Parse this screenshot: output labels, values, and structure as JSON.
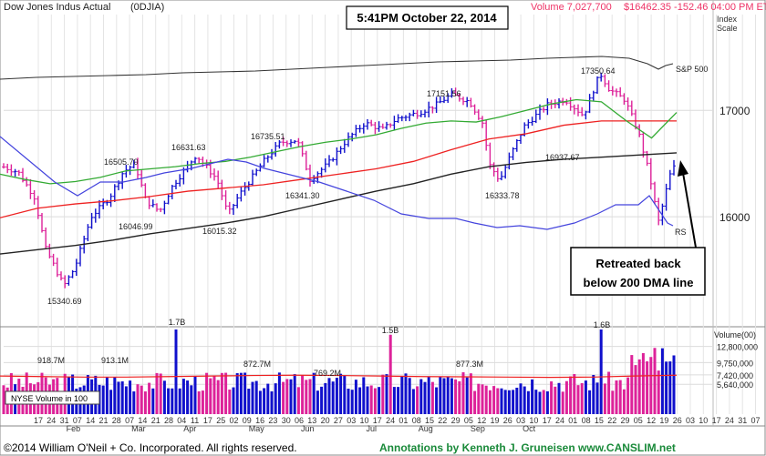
{
  "header": {
    "index_name": "Dow Jones Indus Actual",
    "ticker": "(0DJIA)",
    "volume_label": "Volume 7,027,700",
    "price_label": "$16462.35 -152.46  04:00 PM ET",
    "timestamp": "5:41PM October 22, 2014",
    "index_scale_line1": "Index",
    "index_scale_line2": "Scale"
  },
  "annotation": {
    "lines": [
      "Retreated back",
      "below 200 DMA line"
    ]
  },
  "labels": {
    "sp500": "S&P 500",
    "rs": "RS",
    "nyse_box": "NYSE Volume in 100",
    "volume_axis_title": "Volume(00)"
  },
  "footer": {
    "copyright": "©2014 William O'Neil + Co. Incorporated. All rights reserved.",
    "annotations_credit": "Annotations by Kenneth J. Gruneisen www.CANSLIM.net"
  },
  "colors": {
    "up": "#1010cc",
    "down": "#dd2299",
    "ma50": "#33aa33",
    "ma200": "#222222",
    "ma_red": "#ee2222",
    "rs": "#4444dd",
    "sp500": "#333333",
    "header_red": "#ee3366"
  },
  "chart_data": [
    {
      "type": "line",
      "name": "price",
      "yaxis": {
        "min": 15000,
        "max": 17900,
        "ticks": [
          16000,
          17000
        ],
        "tick_labels": [
          "16000",
          "17000"
        ]
      },
      "x_ticks": [
        "17",
        "24",
        "31",
        "07",
        "14",
        "21",
        "28",
        "07",
        "14",
        "21",
        "28",
        "04",
        "11",
        "17",
        "25",
        "02",
        "09",
        "16",
        "23",
        "30",
        "06",
        "13",
        "20",
        "27",
        "03",
        "10",
        "17",
        "24",
        "01",
        "08",
        "15",
        "22",
        "29",
        "05",
        "12",
        "19",
        "26",
        "03",
        "10",
        "17",
        "24",
        "01",
        "08",
        "15",
        "22",
        "29",
        "05",
        "12",
        "19",
        "26",
        "03",
        "10",
        "17",
        "24",
        "31",
        "07",
        "14",
        "21"
      ],
      "month_labels": [
        "Feb",
        "Mar",
        "Apr",
        "May",
        "Jun",
        "Jul",
        "Aug",
        "Sep",
        "Oct"
      ],
      "price_annotations": [
        {
          "label": "16505.70",
          "value": 16505.7
        },
        {
          "label": "15340.69",
          "value": 15340.69
        },
        {
          "label": "16046.99",
          "value": 16046.99
        },
        {
          "label": "16631.63",
          "value": 16631.63
        },
        {
          "label": "16015.32",
          "value": 16015.32
        },
        {
          "label": "16735.51",
          "value": 16735.51
        },
        {
          "label": "16341.30",
          "value": 16341.3
        },
        {
          "label": "17151.56",
          "value": 17151.56
        },
        {
          "label": "16333.78",
          "value": 16333.78
        },
        {
          "label": "16937.67",
          "value": 16937.67
        },
        {
          "label": "17350.64",
          "value": 17350.64
        }
      ],
      "ma50": [
        16400,
        16350,
        16310,
        16330,
        16370,
        16430,
        16450,
        16470,
        16500,
        16520,
        16560,
        16610,
        16660,
        16700,
        16730,
        16770,
        16830,
        16880,
        16900,
        16890,
        16940,
        17000,
        17060,
        17100,
        17080,
        16900,
        16740,
        16980
      ],
      "ma200": [
        15650,
        15690,
        15730,
        15780,
        15840,
        15890,
        15940,
        16000,
        16080,
        16160,
        16240,
        16310,
        16400,
        16470,
        16510,
        16540,
        16560,
        16580,
        16600
      ],
      "ma_red": [
        15990,
        16080,
        16120,
        16150,
        16190,
        16240,
        16270,
        16300,
        16350,
        16400,
        16450,
        16520,
        16630,
        16730,
        16780,
        16860,
        16900,
        16900,
        16900
      ]
    },
    {
      "type": "bar",
      "name": "volume",
      "yaxis": {
        "min": 0,
        "max": 16000000,
        "ticks": [
          5640000,
          7420000,
          9750000,
          12800000
        ],
        "tick_labels": [
          "5,640,000",
          "7,420,000",
          "9,750,000",
          "12,800,000"
        ]
      },
      "volume_annotations": [
        {
          "label": "918.7M",
          "value": 9187000
        },
        {
          "label": "913.1M",
          "value": 9131000
        },
        {
          "label": "1.7B",
          "value": 17000000
        },
        {
          "label": "872.7M",
          "value": 8727000
        },
        {
          "label": "769.2M",
          "value": 7692000
        },
        {
          "label": "1.5B",
          "value": 15000000
        },
        {
          "label": "877.3M",
          "value": 8773000
        },
        {
          "label": "1.6B",
          "value": 16000000
        }
      ]
    }
  ]
}
